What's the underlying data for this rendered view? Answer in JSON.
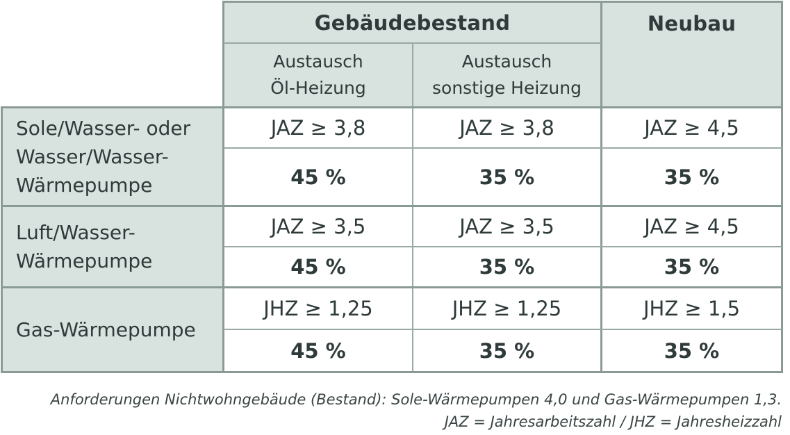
{
  "header": {
    "group_existing": "Gebäudebestand",
    "group_new": "Neubau",
    "sub_oil": [
      "Austausch",
      "Öl-Heizung"
    ],
    "sub_other": [
      "Austausch",
      "sonstige Heizung"
    ]
  },
  "rows": [
    {
      "label": [
        "Sole/Wasser- oder",
        "Wasser/Wasser-",
        "Wärmepumpe"
      ],
      "req": [
        "JAZ ≥ 3,8",
        "JAZ ≥ 3,8",
        "JAZ ≥ 4,5"
      ],
      "pct": [
        "45 %",
        "35 %",
        "35 %"
      ]
    },
    {
      "label": [
        "Luft/Wasser-",
        "Wärmepumpe"
      ],
      "req": [
        "JAZ ≥ 3,5",
        "JAZ ≥ 3,5",
        "JAZ ≥ 4,5"
      ],
      "pct": [
        "45 %",
        "35 %",
        "35 %"
      ]
    },
    {
      "label": [
        "Gas-Wärmepumpe"
      ],
      "req": [
        "JHZ ≥ 1,25",
        "JHZ ≥ 1,25",
        "JHZ ≥ 1,5"
      ],
      "pct": [
        "45 %",
        "35 %",
        "35 %"
      ]
    }
  ],
  "footer": {
    "line1": "Anforderungen Nichtwohngebäude (Bestand): Sole-Wärmepumpen 4,0 und Gas-Wärmepumpen 1,3.",
    "line2": "JAZ = Jahresarbeitszahl / JHZ = Jahresheizzahl"
  }
}
